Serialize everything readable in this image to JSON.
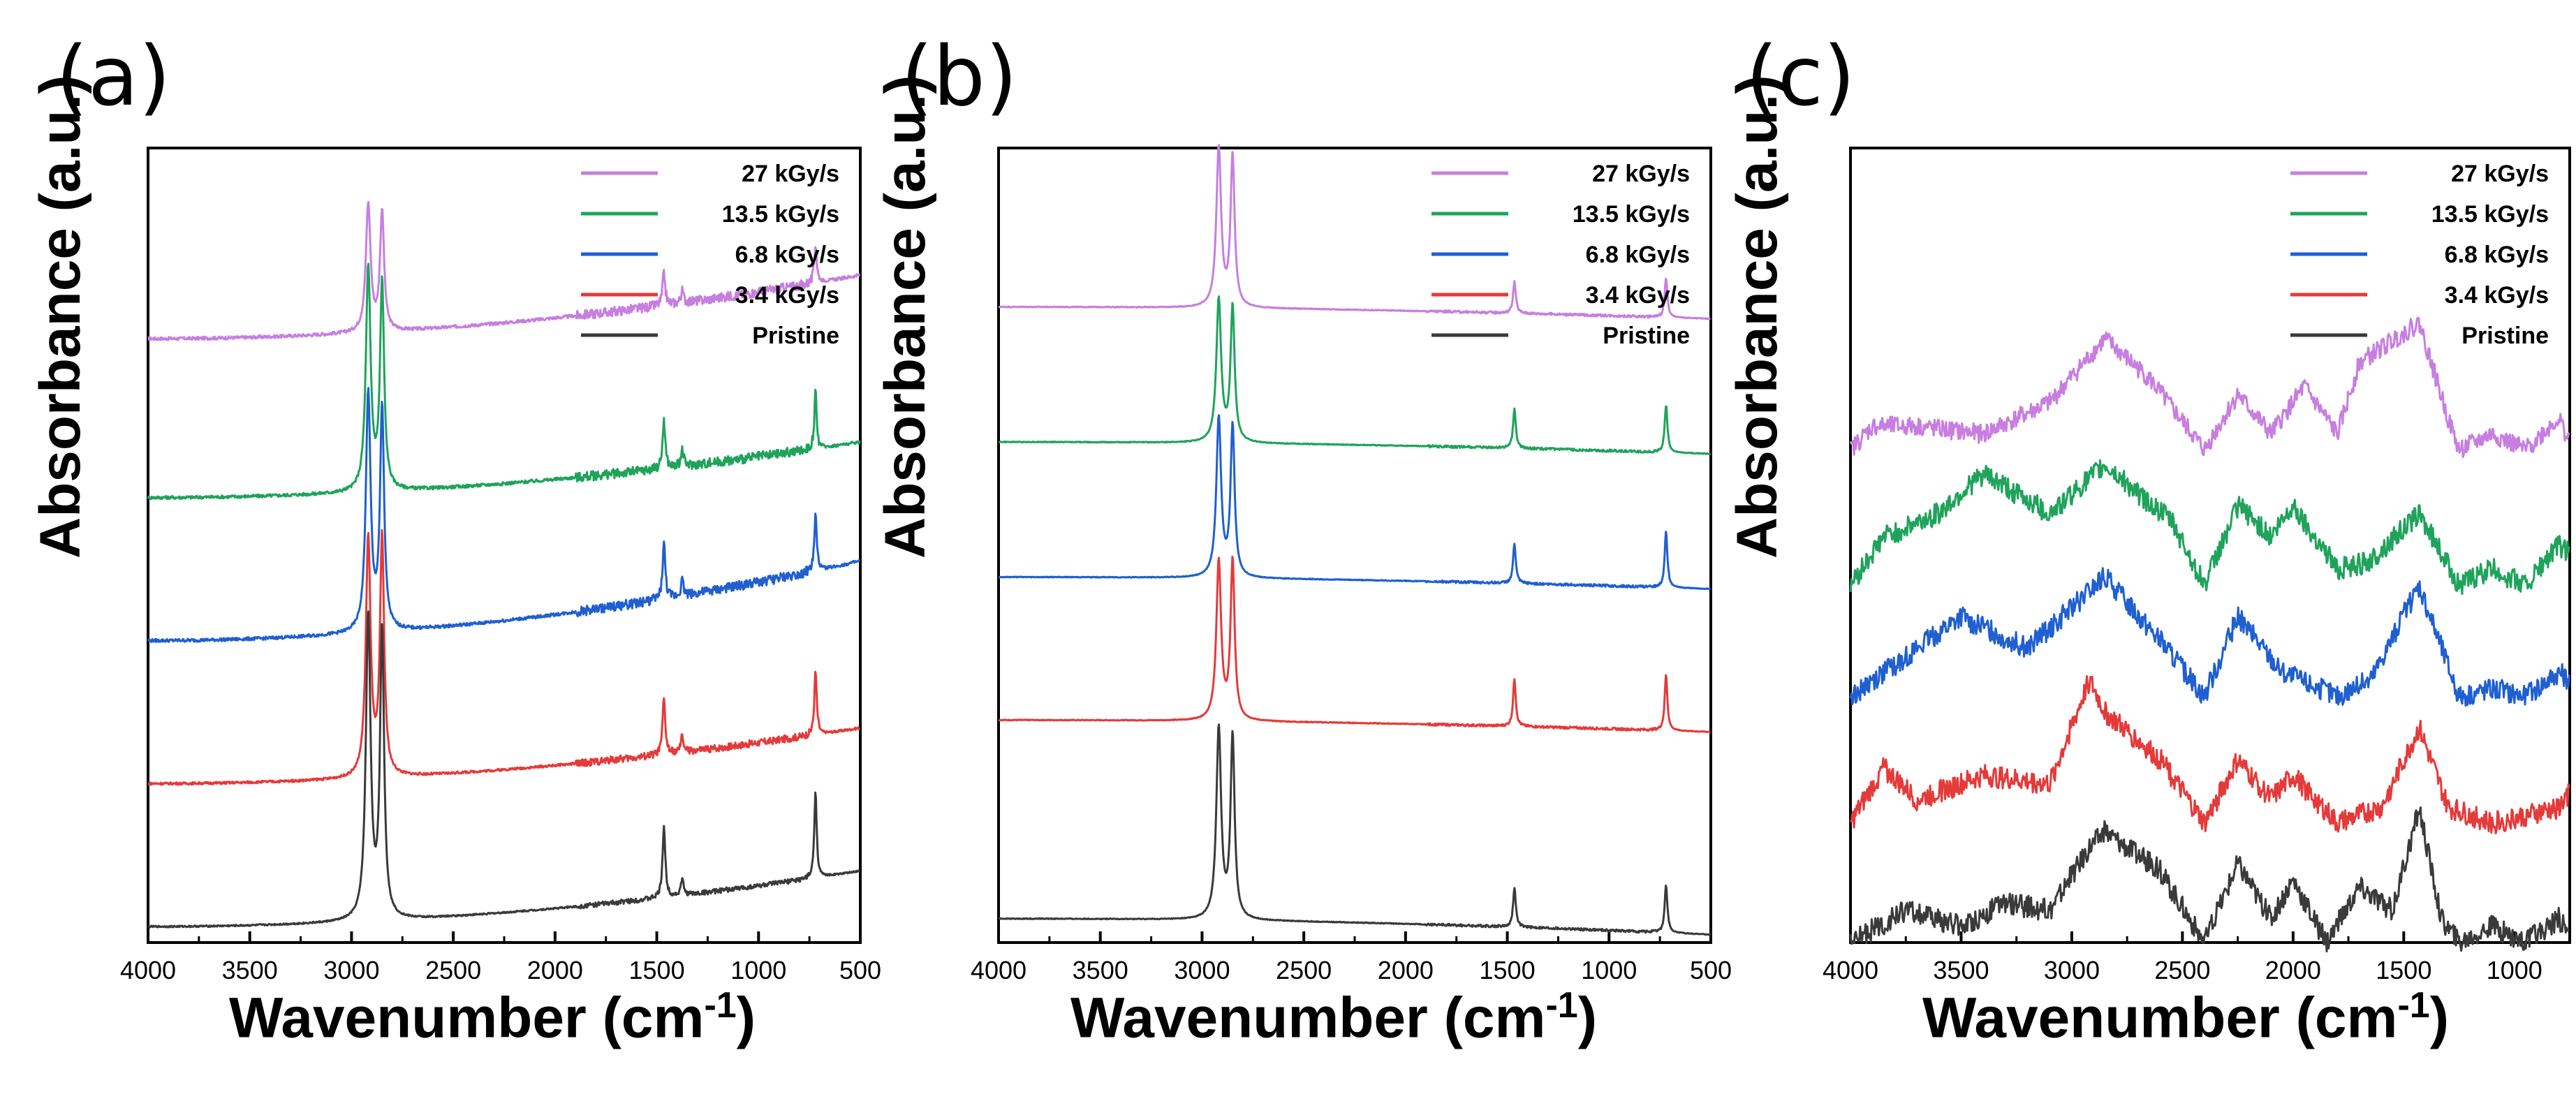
{
  "chart_data": [
    {
      "panel_label": "(a)",
      "type": "line",
      "title": "",
      "xlabel": "Wavenumber (cm",
      "xlabel_sup": "-1",
      "xlabel_close": ")",
      "ylabel": "Absorbance (a.u.)",
      "xlim": [
        4000,
        500
      ],
      "x_ticks": [
        "4000",
        "3500",
        "3000",
        "2500",
        "2000",
        "1500",
        "1000",
        "500"
      ],
      "x_tick_values": [
        4000,
        3500,
        3000,
        2500,
        2000,
        1500,
        1000,
        500
      ],
      "peaks": [
        2918,
        2850,
        1465,
        1375,
        720
      ],
      "series": [
        {
          "name": "27 kGy/s",
          "color": "#C77EE0",
          "baseline": 0.76,
          "slope": 0.08,
          "peak_heights": [
            0.16,
            0.15,
            0.04,
            0.015,
            0.05
          ],
          "noise": 0.004
        },
        {
          "name": "13.5 kGy/s",
          "color": "#1FA35B",
          "baseline": 0.56,
          "slope": 0.07,
          "peak_heights": [
            0.28,
            0.26,
            0.06,
            0.02,
            0.07
          ],
          "noise": 0.004
        },
        {
          "name": "6.8 kGy/s",
          "color": "#1F5FD0",
          "baseline": 0.38,
          "slope": 0.1,
          "peak_heights": [
            0.3,
            0.28,
            0.07,
            0.02,
            0.07
          ],
          "noise": 0.004
        },
        {
          "name": "3.4 kGy/s",
          "color": "#E53A3A",
          "baseline": 0.2,
          "slope": 0.07,
          "peak_heights": [
            0.3,
            0.3,
            0.07,
            0.02,
            0.08
          ],
          "noise": 0.003
        },
        {
          "name": "Pristine",
          "color": "#3A3A3A",
          "baseline": 0.02,
          "slope": 0.07,
          "peak_heights": [
            0.38,
            0.36,
            0.09,
            0.02,
            0.11
          ],
          "noise": 0.002
        }
      ]
    },
    {
      "panel_label": "(b)",
      "type": "line",
      "title": "",
      "xlabel": "Wavenumber (cm",
      "xlabel_sup": "-1",
      "xlabel_close": ")",
      "ylabel": "Absorbance (a.u.)",
      "xlim": [
        4000,
        500
      ],
      "x_ticks": [
        "4000",
        "3500",
        "3000",
        "2500",
        "2000",
        "1500",
        "1000",
        "500"
      ],
      "x_tick_values": [
        4000,
        3500,
        3000,
        2500,
        2000,
        1500,
        1000,
        500
      ],
      "peaks": [
        2918,
        2850,
        1465,
        720
      ],
      "series": [
        {
          "name": "27 kGy/s",
          "color": "#C77EE0",
          "baseline": 0.8,
          "slope": -0.015,
          "peak_heights": [
            0.2,
            0.19,
            0.04,
            0.05
          ],
          "noise": 0.001
        },
        {
          "name": "13.5 kGy/s",
          "color": "#1FA35B",
          "baseline": 0.63,
          "slope": -0.015,
          "peak_heights": [
            0.18,
            0.17,
            0.05,
            0.06
          ],
          "noise": 0.001
        },
        {
          "name": "6.8 kGy/s",
          "color": "#1F5FD0",
          "baseline": 0.46,
          "slope": -0.015,
          "peak_heights": [
            0.2,
            0.19,
            0.05,
            0.07
          ],
          "noise": 0.001
        },
        {
          "name": "3.4 kGy/s",
          "color": "#E53A3A",
          "baseline": 0.28,
          "slope": -0.015,
          "peak_heights": [
            0.2,
            0.2,
            0.06,
            0.07
          ],
          "noise": 0.001
        },
        {
          "name": "Pristine",
          "color": "#3A3A3A",
          "baseline": 0.03,
          "slope": -0.02,
          "peak_heights": [
            0.24,
            0.23,
            0.05,
            0.06
          ],
          "noise": 0.001
        }
      ]
    },
    {
      "panel_label": "(c)",
      "type": "line",
      "title": "",
      "xlabel": "Wavenumber (cm",
      "xlabel_sup": "-1",
      "xlabel_close": ")",
      "ylabel": "Absorbance (a.u.)",
      "xlim": [
        4000,
        750
      ],
      "x_ticks": [
        "4000",
        "3500",
        "3000",
        "2500",
        "2000",
        "1500",
        "1000"
      ],
      "x_tick_values": [
        4000,
        3500,
        3000,
        2500,
        2000,
        1500,
        1000
      ],
      "series": [
        {
          "name": "27 kGy/s",
          "color": "#C77EE0",
          "baseline": 0.62,
          "noise": 0.012,
          "shape": [
            [
              4000,
              0.0
            ],
            [
              3900,
              0.03
            ],
            [
              3700,
              0.03
            ],
            [
              3400,
              0.02
            ],
            [
              3100,
              0.06
            ],
            [
              2850,
              0.14
            ],
            [
              2650,
              0.09
            ],
            [
              2400,
              0.0
            ],
            [
              2250,
              0.07
            ],
            [
              2100,
              0.02
            ],
            [
              1950,
              0.08
            ],
            [
              1800,
              0.02
            ],
            [
              1700,
              0.11
            ],
            [
              1430,
              0.16
            ],
            [
              1300,
              0.04
            ],
            [
              1250,
              0.0
            ],
            [
              1100,
              0.02
            ],
            [
              950,
              0.0
            ],
            [
              800,
              0.04
            ],
            [
              750,
              0.01
            ]
          ]
        },
        {
          "name": "13.5 kGy/s",
          "color": "#1FA35B",
          "baseline": 0.45,
          "noise": 0.014,
          "shape": [
            [
              4000,
              0.0
            ],
            [
              3850,
              0.06
            ],
            [
              3600,
              0.09
            ],
            [
              3400,
              0.14
            ],
            [
              3100,
              0.09
            ],
            [
              2850,
              0.15
            ],
            [
              2550,
              0.08
            ],
            [
              2400,
              0.0
            ],
            [
              2250,
              0.1
            ],
            [
              2100,
              0.06
            ],
            [
              2000,
              0.1
            ],
            [
              1800,
              0.02
            ],
            [
              1650,
              0.03
            ],
            [
              1430,
              0.09
            ],
            [
              1250,
              0.0
            ],
            [
              1100,
              0.02
            ],
            [
              950,
              0.0
            ],
            [
              800,
              0.05
            ],
            [
              750,
              0.04
            ]
          ]
        },
        {
          "name": "6.8 kGy/s",
          "color": "#1F5FD0",
          "baseline": 0.31,
          "noise": 0.014,
          "shape": [
            [
              4000,
              0.0
            ],
            [
              3800,
              0.04
            ],
            [
              3500,
              0.1
            ],
            [
              3200,
              0.06
            ],
            [
              2850,
              0.15
            ],
            [
              2600,
              0.07
            ],
            [
              2400,
              0.0
            ],
            [
              2250,
              0.1
            ],
            [
              2050,
              0.03
            ],
            [
              1800,
              0.0
            ],
            [
              1650,
              0.02
            ],
            [
              1430,
              0.14
            ],
            [
              1250,
              0.0
            ],
            [
              1100,
              0.01
            ],
            [
              950,
              0.0
            ],
            [
              800,
              0.03
            ],
            [
              750,
              0.02
            ]
          ]
        },
        {
          "name": "3.4 kGy/s",
          "color": "#E53A3A",
          "baseline": 0.15,
          "noise": 0.014,
          "shape": [
            [
              4000,
              0.0
            ],
            [
              3850,
              0.07
            ],
            [
              3700,
              0.03
            ],
            [
              3400,
              0.06
            ],
            [
              3100,
              0.05
            ],
            [
              2920,
              0.18
            ],
            [
              2850,
              0.14
            ],
            [
              2600,
              0.08
            ],
            [
              2400,
              0.0
            ],
            [
              2250,
              0.08
            ],
            [
              2100,
              0.03
            ],
            [
              2000,
              0.06
            ],
            [
              1800,
              0.0
            ],
            [
              1600,
              0.02
            ],
            [
              1430,
              0.12
            ],
            [
              1300,
              0.02
            ],
            [
              1100,
              0.0
            ],
            [
              950,
              0.01
            ],
            [
              800,
              0.02
            ],
            [
              750,
              0.04
            ]
          ]
        },
        {
          "name": "Pristine",
          "color": "#3A3A3A",
          "baseline": 0.0,
          "noise": 0.014,
          "shape": [
            [
              4000,
              0.0
            ],
            [
              3750,
              0.04
            ],
            [
              3500,
              0.02
            ],
            [
              3300,
              0.05
            ],
            [
              3100,
              0.04
            ],
            [
              2920,
              0.12
            ],
            [
              2850,
              0.14
            ],
            [
              2600,
              0.09
            ],
            [
              2400,
              0.0
            ],
            [
              2250,
              0.1
            ],
            [
              2100,
              0.03
            ],
            [
              2000,
              0.08
            ],
            [
              1850,
              0.0
            ],
            [
              1700,
              0.07
            ],
            [
              1550,
              0.04
            ],
            [
              1430,
              0.17
            ],
            [
              1330,
              0.03
            ],
            [
              1250,
              0.0
            ],
            [
              1100,
              0.02
            ],
            [
              950,
              0.0
            ],
            [
              800,
              0.03
            ],
            [
              750,
              0.01
            ]
          ]
        }
      ]
    }
  ]
}
